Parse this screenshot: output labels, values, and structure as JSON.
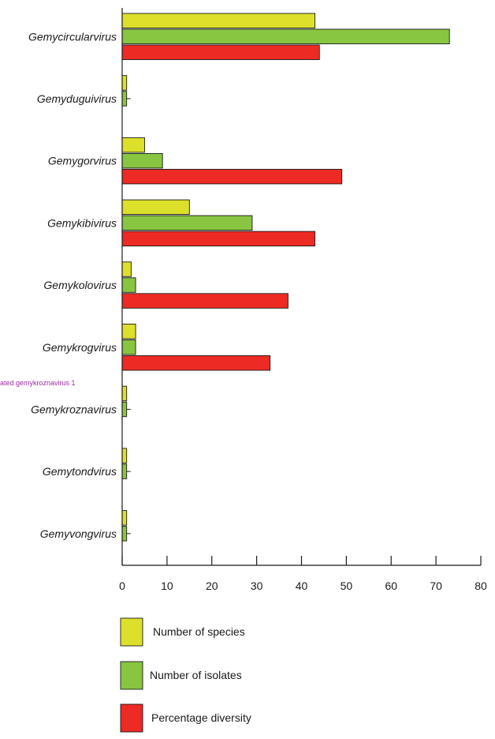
{
  "chart_data": {
    "type": "bar",
    "orientation": "horizontal",
    "categories": [
      "Gemycircularvirus",
      "Gemyduguivirus",
      "Gemygorvirus",
      "Gemykibivirus",
      "Gemykolovirus",
      "Gemykrogvirus",
      "Gemykroznavirus",
      "Gemytondvirus",
      "Gemyvongvirus"
    ],
    "series": [
      {
        "name": "Number of species",
        "color": "#dce02a",
        "values": [
          43,
          1,
          5,
          15,
          2,
          3,
          1,
          1,
          1
        ]
      },
      {
        "name": "Number of isolates",
        "color": "#88c540",
        "values": [
          73,
          1,
          9,
          29,
          3,
          3,
          1,
          1,
          1
        ]
      },
      {
        "name": "Percentage diversity",
        "color": "#ee2a24",
        "values": [
          44,
          null,
          49,
          43,
          37,
          33,
          null,
          null,
          null
        ]
      }
    ],
    "ticks": [
      "0",
      "10",
      "20",
      "30",
      "40",
      "50",
      "60",
      "70",
      "80"
    ],
    "xlim": [
      0,
      80
    ],
    "grid": false,
    "legend_position": "bottom",
    "annotation": {
      "text": "ated gemykroznavirus 1",
      "color": "#9b2fa3"
    }
  }
}
